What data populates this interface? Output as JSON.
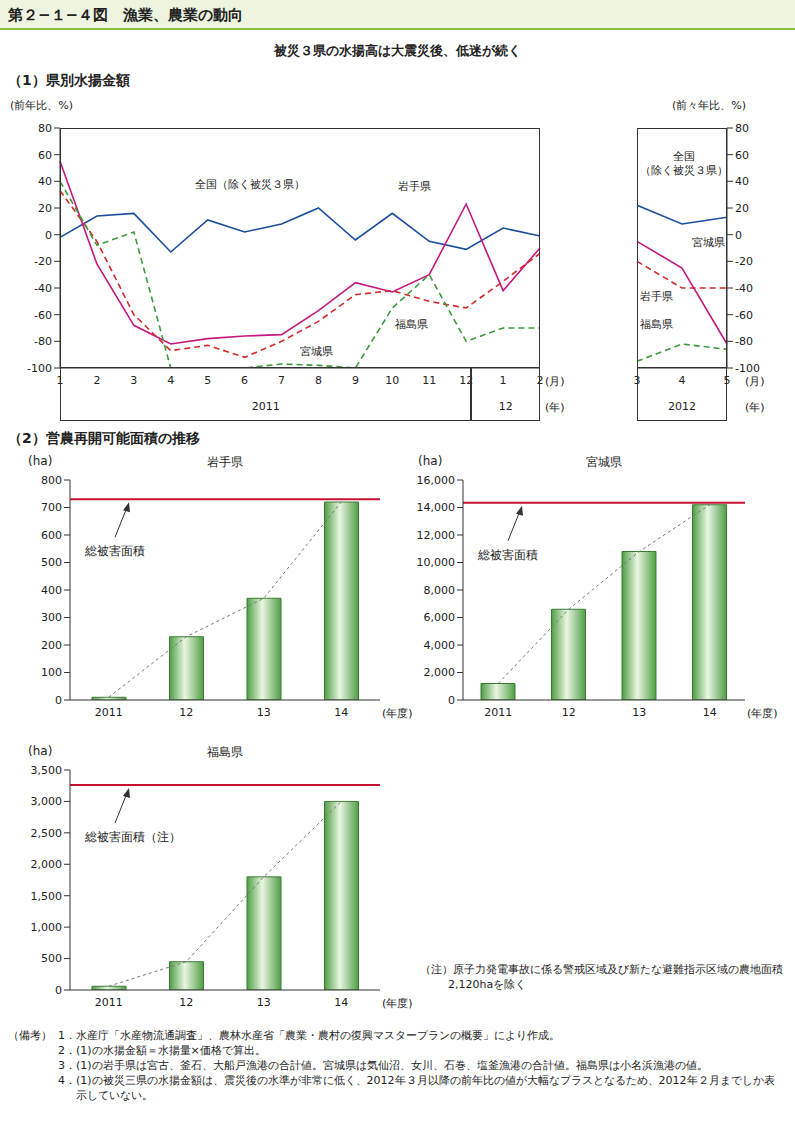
{
  "title": "第２−１−４図　漁業、農業の動向",
  "subtitle": "被災３県の水揚高は大震災後、低迷が続く",
  "sections": [
    "（1）県別水揚金額",
    "（2）営農再開可能面積の推移"
  ],
  "notes": {
    "label": "（備考）",
    "items": [
      "1．水産庁「水産物流通調査」、農林水産省「農業・農村の復興マスタープランの概要」により作成。",
      "2．(1)の水揚金額＝水揚量×価格で算出。",
      "3．(1)の岩手県は宮古、釜石、大船戸漁港の合計値。宮城県は気仙沼、女川、石巻、塩釜漁港の合計値。福島県は小名浜漁港の値。",
      "4．(1)の被災三県の水揚金額は、震災後の水準が非常に低く、2012年３月以降の前年比の値が大幅なプラスとなるため、2012年２月までしか表示していない。"
    ]
  },
  "chart_data": [
    {
      "type": "line",
      "y_label": "(前年比、%)",
      "x_label": "(月)",
      "x_group_label": "(年)",
      "categories": [
        "1",
        "2",
        "3",
        "4",
        "5",
        "6",
        "7",
        "8",
        "9",
        "10",
        "11",
        "12",
        "1",
        "2"
      ],
      "x_groups": [
        {
          "label": "2011",
          "count": 12
        },
        {
          "label": "12",
          "count": 2
        }
      ],
      "ylim": [
        -100,
        80
      ],
      "yticks": [
        -100,
        -80,
        -60,
        -40,
        -20,
        0,
        20,
        40,
        60,
        80
      ],
      "grid": false,
      "series": [
        {
          "name": "全国（除く被災３県）",
          "color": "#1a4d9c",
          "line_style": "solid",
          "marker": "none",
          "values": [
            -2,
            14,
            16,
            -13,
            11,
            2,
            8,
            20,
            -4,
            16,
            -5,
            -11,
            5,
            -1
          ]
        },
        {
          "name": "岩手県",
          "color": "#c4187f",
          "line_style": "solid",
          "marker": "none",
          "values": [
            55,
            -22,
            -68,
            -82,
            -78,
            -76,
            -75,
            -57,
            -36,
            -43,
            -30,
            23,
            -42,
            -10
          ]
        },
        {
          "name": "宮城県",
          "color": "#d42a2a",
          "line_style": "dashed",
          "marker": "none",
          "values": [
            33,
            -5,
            -60,
            -87,
            -83,
            -92,
            -80,
            -65,
            -45,
            -42,
            -50,
            -55,
            -35,
            -14
          ]
        },
        {
          "name": "福島県",
          "color": "#3c9a3c",
          "line_style": "dashed",
          "marker": "none",
          "values": [
            40,
            -8,
            2,
            -100,
            -100,
            -100,
            -97,
            -98,
            -100,
            -55,
            -30,
            -80,
            -70,
            -70
          ]
        }
      ]
    },
    {
      "type": "line",
      "y_label": "(前々年比、%)",
      "x_label": "(月)",
      "x_group_label": "(年)",
      "categories": [
        "3",
        "4",
        "5"
      ],
      "x_groups": [
        {
          "label": "2012",
          "count": 3
        }
      ],
      "ylim": [
        -100,
        80
      ],
      "yticks": [
        -100,
        -80,
        -60,
        -40,
        -20,
        0,
        20,
        40,
        60,
        80
      ],
      "grid": false,
      "series": [
        {
          "name": "全国（除く被災３県）",
          "color": "#1a4d9c",
          "line_style": "solid",
          "marker": "none",
          "values": [
            22,
            8,
            13
          ]
        },
        {
          "name": "宮城県",
          "color": "#d42a2a",
          "line_style": "dashed",
          "marker": "none",
          "values": [
            -20,
            -40,
            -40
          ]
        },
        {
          "name": "岩手県",
          "color": "#c4187f",
          "line_style": "solid",
          "marker": "none",
          "values": [
            -5,
            -25,
            -82
          ]
        },
        {
          "name": "福島県",
          "color": "#3c9a3c",
          "line_style": "dashed",
          "marker": "none",
          "values": [
            -95,
            -82,
            -86
          ]
        }
      ]
    },
    {
      "type": "bar",
      "title": "岩手県",
      "y_label": "(ha)",
      "x_label": "(年度)",
      "categories": [
        "2011",
        "12",
        "13",
        "14"
      ],
      "values": [
        10,
        230,
        370,
        720
      ],
      "color": "#4f9e45",
      "ylim": [
        0,
        800
      ],
      "yticks": [
        0,
        100,
        200,
        300,
        400,
        500,
        600,
        700,
        800
      ],
      "grid": false,
      "reference": {
        "label": "総被害面積",
        "value": 730,
        "color": "#c8102e"
      }
    },
    {
      "type": "bar",
      "title": "宮城県",
      "y_label": "(ha)",
      "x_label": "(年度)",
      "categories": [
        "2011",
        "12",
        "13",
        "14"
      ],
      "values": [
        1200,
        6600,
        10800,
        14200
      ],
      "color": "#4f9e45",
      "ylim": [
        0,
        16000
      ],
      "yticks": [
        0,
        {
          "value": 2000,
          "label": "2,000"
        },
        {
          "value": 4000,
          "label": "4,000"
        },
        {
          "value": 6000,
          "label": "6,000"
        },
        {
          "value": 8000,
          "label": "8,000"
        },
        {
          "value": 10000,
          "label": "10,000"
        },
        {
          "value": 12000,
          "label": "12,000"
        },
        {
          "value": 14000,
          "label": "14,000"
        },
        {
          "value": 16000,
          "label": "16,000"
        }
      ],
      "grid": false,
      "reference": {
        "label": "総被害面積",
        "value": 14340,
        "color": "#c8102e"
      }
    },
    {
      "type": "bar",
      "title": "福島県",
      "y_label": "(ha)",
      "x_label": "(年度)",
      "categories": [
        "2011",
        "12",
        "13",
        "14"
      ],
      "values": [
        60,
        450,
        1800,
        3000
      ],
      "color": "#4f9e45",
      "ylim": [
        0,
        3500
      ],
      "yticks": [
        0,
        500,
        {
          "value": 1000,
          "label": "1,000"
        },
        {
          "value": 1500,
          "label": "1,500"
        },
        {
          "value": 2000,
          "label": "2,000"
        },
        {
          "value": 2500,
          "label": "2,500"
        },
        {
          "value": 3000,
          "label": "3,000"
        },
        {
          "value": 3500,
          "label": "3,500"
        }
      ],
      "grid": false,
      "reference": {
        "label": "総被害面積（注）",
        "value": 3260,
        "color": "#c8102e"
      },
      "annotation": "（注）原子力発電事故に係る警戒区域及び新たな避難指示区域の農地面積2,120haを除く"
    }
  ]
}
